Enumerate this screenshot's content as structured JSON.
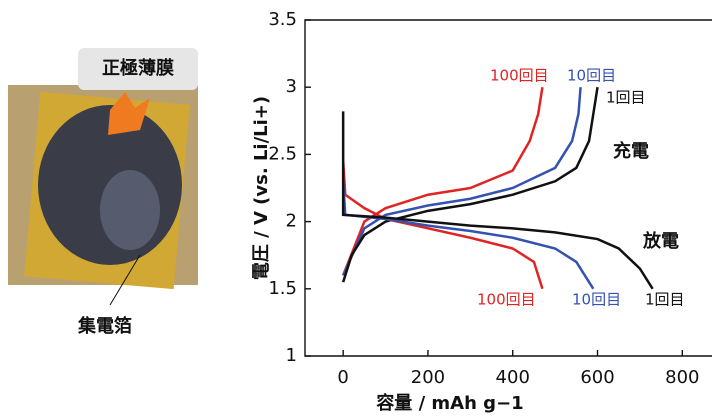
{
  "photo": {
    "labels": [
      "正極薄膜",
      "集電箔"
    ]
  },
  "chart_data": {
    "type": "line",
    "xlabel": "容量 / mAh g−1",
    "ylabel": "電圧 / V (vs. Li/Li+)",
    "xlim": [
      -90,
      870
    ],
    "ylim": [
      1,
      3.5
    ],
    "xticks": [
      0,
      200,
      400,
      600,
      800
    ],
    "yticks": [
      1,
      1.5,
      2,
      2.5,
      3,
      3.5
    ],
    "annotations": [
      "充電",
      "放電"
    ],
    "series": [
      {
        "name": "100回目",
        "color": "#e02424",
        "x": [
          0,
          50,
          100,
          200,
          300,
          400,
          440,
          460,
          470
        ],
        "values": [
          1.6,
          2.0,
          2.1,
          2.2,
          2.25,
          2.38,
          2.6,
          2.8,
          3.0
        ]
      },
      {
        "name": "10回目",
        "color": "#3552b0",
        "x": [
          0,
          50,
          100,
          200,
          300,
          400,
          500,
          540,
          555,
          560
        ],
        "values": [
          1.6,
          1.95,
          2.05,
          2.12,
          2.17,
          2.25,
          2.4,
          2.6,
          2.8,
          3.0
        ]
      },
      {
        "name": "1回目",
        "color": "#111111",
        "x": [
          0,
          20,
          50,
          100,
          200,
          300,
          400,
          500,
          550,
          580,
          595,
          600
        ],
        "values": [
          1.55,
          1.75,
          1.9,
          2.0,
          2.08,
          2.13,
          2.2,
          2.3,
          2.4,
          2.6,
          2.9,
          3.0
        ]
      },
      {
        "name": "100回目",
        "color": "#e02424",
        "x": [
          0,
          5,
          50,
          100,
          200,
          300,
          400,
          450,
          470
        ],
        "values": [
          2.45,
          2.2,
          2.1,
          2.02,
          1.95,
          1.88,
          1.8,
          1.7,
          1.5
        ]
      },
      {
        "name": "10回目",
        "color": "#3552b0",
        "x": [
          0,
          5,
          100,
          200,
          300,
          400,
          500,
          550,
          590
        ],
        "values": [
          2.3,
          2.05,
          2.02,
          1.97,
          1.93,
          1.88,
          1.8,
          1.7,
          1.5
        ]
      },
      {
        "name": "1回目",
        "color": "#111111",
        "x": [
          0,
          0,
          100,
          200,
          300,
          400,
          500,
          600,
          650,
          700,
          730
        ],
        "values": [
          2.82,
          2.05,
          2.03,
          2.0,
          1.97,
          1.95,
          1.92,
          1.87,
          1.8,
          1.65,
          1.5
        ]
      }
    ]
  }
}
